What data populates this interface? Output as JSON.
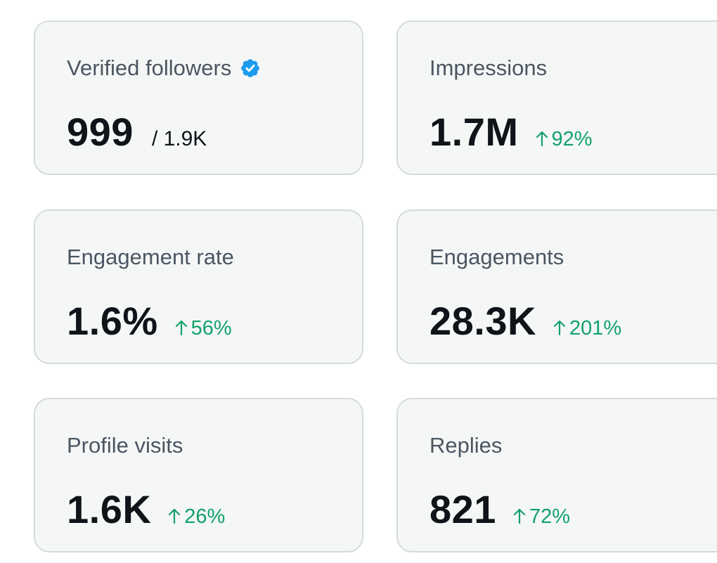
{
  "colors": {
    "card_bg": "#f5f7f7",
    "card_border": "#d3dbe0",
    "label": "#4b5661",
    "value": "#0f1419",
    "positive": "#12a16a",
    "verified": "#1d9bf0"
  },
  "cards": [
    {
      "label": "Verified followers",
      "value": "999",
      "sub": "/ 1.9K",
      "icon": "verified-badge-icon"
    },
    {
      "label": "Impressions",
      "value": "1.7M",
      "delta": "92%",
      "icon": "arrow-up-icon"
    },
    {
      "label": "Engagement rate",
      "value": "1.6%",
      "delta": "56%",
      "icon": "arrow-up-icon"
    },
    {
      "label": "Engagements",
      "value": "28.3K",
      "delta": "201%",
      "icon": "arrow-up-icon"
    },
    {
      "label": "Profile visits",
      "value": "1.6K",
      "delta": "26%",
      "icon": "arrow-up-icon"
    },
    {
      "label": "Replies",
      "value": "821",
      "delta": "72%",
      "icon": "arrow-up-icon"
    }
  ]
}
